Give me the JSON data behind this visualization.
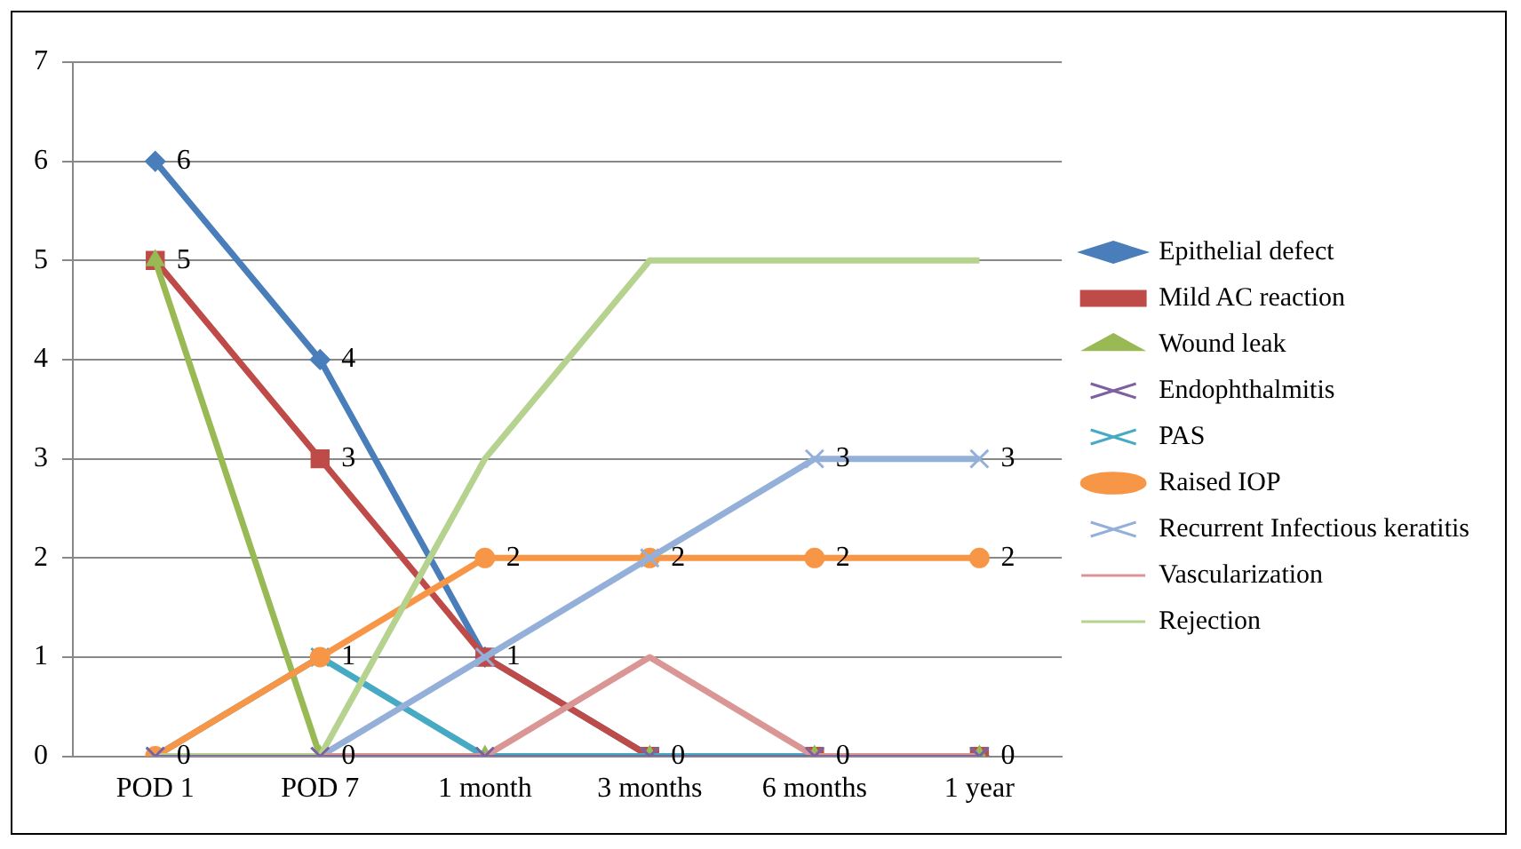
{
  "chart_data": {
    "type": "line",
    "categories": [
      "POD 1",
      "POD 7",
      "1 month",
      "3 months",
      "6 months",
      "1 year"
    ],
    "ylim": [
      0,
      7
    ],
    "yticks": [
      0,
      1,
      2,
      3,
      4,
      5,
      6,
      7
    ],
    "grid": "y",
    "legend": "right",
    "line_style": "solid",
    "series": [
      {
        "name": "Epithelial defect",
        "color": "#4a7ebb",
        "marker": "diamond",
        "values": [
          6,
          4,
          1,
          0,
          0,
          0
        ],
        "value_labels": [
          "6",
          "4",
          "1",
          null,
          null,
          null
        ]
      },
      {
        "name": "Mild AC reaction",
        "color": "#be4b48",
        "marker": "square",
        "values": [
          5,
          3,
          1,
          0,
          0,
          0
        ],
        "value_labels": [
          "5",
          "3",
          null,
          null,
          null,
          null
        ]
      },
      {
        "name": "Wound leak",
        "color": "#98b954",
        "marker": "triangle",
        "values": [
          5,
          0,
          0,
          0,
          0,
          0
        ]
      },
      {
        "name": "Endophthalmitis",
        "color": "#7d60a0",
        "marker": "cross",
        "values": [
          0,
          0,
          0,
          0,
          0,
          0
        ],
        "value_labels": [
          "0",
          "0",
          null,
          "0",
          "0",
          "0"
        ]
      },
      {
        "name": "PAS",
        "color": "#46aac5",
        "marker": "cross",
        "values": [
          0,
          1,
          0,
          0,
          0,
          0
        ]
      },
      {
        "name": "Raised IOP",
        "color": "#f79646",
        "marker": "circle",
        "values": [
          0,
          1,
          2,
          2,
          2,
          2
        ],
        "value_labels": [
          null,
          "1",
          "2",
          "2",
          "2",
          "2"
        ]
      },
      {
        "name": "Recurrent Infectious keratitis",
        "color": "#94b0d9",
        "marker": "cross",
        "values": [
          0,
          0,
          1,
          2,
          3,
          3
        ],
        "value_labels": [
          null,
          null,
          null,
          null,
          "3",
          "3"
        ]
      },
      {
        "name": "Vascularization",
        "color": "#d99694",
        "marker": "none",
        "values": [
          0,
          0,
          0,
          1,
          0,
          0
        ]
      },
      {
        "name": "Rejection",
        "color": "#b5d28e",
        "marker": "none",
        "values": [
          0,
          0,
          3,
          5,
          5,
          5
        ]
      }
    ]
  }
}
